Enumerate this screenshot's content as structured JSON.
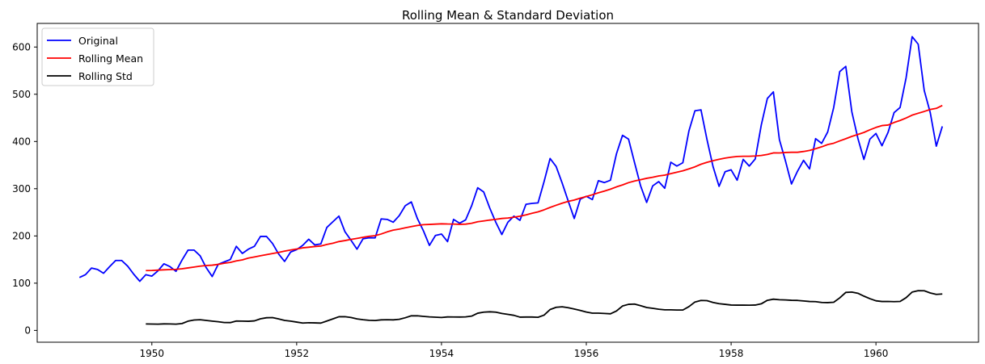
{
  "chart_data": {
    "type": "line",
    "title": "Rolling Mean & Standard Deviation",
    "xlabel": "",
    "ylabel": "",
    "x_start": "1949-01",
    "x_ticks": [
      1950,
      1952,
      1954,
      1956,
      1958,
      1960
    ],
    "y_ticks": [
      0,
      100,
      200,
      300,
      400,
      500,
      600
    ],
    "xlim": [
      "1948-06",
      "1961-06"
    ],
    "ylim": [
      -25,
      650
    ],
    "grid": false,
    "legend_position": "upper-left",
    "series": [
      {
        "name": "Original",
        "color": "#0000ff",
        "values": [
          112,
          118,
          132,
          129,
          121,
          135,
          148,
          148,
          136,
          119,
          104,
          118,
          115,
          126,
          141,
          135,
          125,
          149,
          170,
          170,
          158,
          133,
          114,
          140,
          145,
          150,
          178,
          163,
          172,
          178,
          199,
          199,
          184,
          162,
          146,
          166,
          171,
          180,
          193,
          181,
          183,
          218,
          230,
          242,
          209,
          191,
          172,
          194,
          196,
          196,
          236,
          235,
          229,
          243,
          264,
          272,
          237,
          211,
          180,
          201,
          204,
          188,
          235,
          227,
          234,
          264,
          302,
          293,
          259,
          229,
          203,
          229,
          242,
          233,
          267,
          269,
          270,
          315,
          364,
          347,
          312,
          274,
          237,
          278,
          284,
          277,
          317,
          313,
          318,
          374,
          413,
          405,
          355,
          306,
          271,
          306,
          315,
          301,
          356,
          348,
          355,
          422,
          465,
          467,
          404,
          347,
          305,
          336,
          340,
          318,
          362,
          348,
          363,
          435,
          491,
          505,
          404,
          359,
          310,
          337,
          360,
          342,
          406,
          396,
          420,
          472,
          548,
          559,
          463,
          407,
          362,
          405,
          417,
          391,
          419,
          461,
          472,
          535,
          622,
          606,
          508,
          461,
          390,
          432
        ]
      },
      {
        "name": "Rolling Mean",
        "color": "#ff0000",
        "values": [
          null,
          null,
          null,
          null,
          null,
          null,
          null,
          null,
          null,
          null,
          null,
          126.7,
          126.9,
          127.6,
          128.3,
          128.8,
          129.2,
          130.5,
          132.3,
          134.2,
          136.1,
          137.3,
          138.1,
          139.8,
          142.2,
          144.0,
          147.1,
          149.3,
          153.2,
          155.5,
          158.0,
          160.4,
          162.7,
          165.1,
          167.8,
          170.2,
          172.3,
          174.8,
          176.1,
          177.6,
          178.6,
          181.9,
          184.5,
          188.1,
          190.2,
          192.6,
          194.8,
          197.1,
          199.2,
          200.5,
          204.1,
          208.6,
          212.4,
          214.5,
          217.3,
          219.8,
          222.1,
          223.8,
          224.4,
          225.0,
          225.7,
          225.3,
          225.2,
          224.6,
          225.0,
          226.8,
          230.0,
          231.8,
          233.6,
          235.1,
          237.0,
          238.0,
          239.7,
          241.8,
          244.5,
          248.0,
          251.0,
          255.3,
          260.4,
          265.0,
          269.4,
          273.2,
          276.0,
          280.1,
          283.5,
          287.2,
          291.4,
          295.0,
          299.0,
          303.9,
          308.0,
          312.8,
          316.4,
          319.2,
          322.0,
          324.3,
          327.0,
          328.8,
          332.0,
          334.9,
          338.0,
          342.0,
          346.3,
          351.8,
          355.9,
          359.3,
          362.2,
          364.8,
          366.8,
          368.2,
          368.7,
          368.7,
          369.3,
          370.4,
          372.6,
          375.8,
          375.7,
          376.7,
          377.1,
          377.1,
          378.8,
          381.0,
          384.7,
          388.7,
          393.5,
          396.3,
          401.2,
          405.8,
          410.8,
          414.8,
          419.1,
          424.8,
          429.7,
          433.7,
          434.8,
          440.2,
          444.5,
          449.7,
          455.8,
          459.8,
          463.6,
          467.8,
          470.1,
          476.2
        ]
      },
      {
        "name": "Rolling Std",
        "color": "#000000",
        "values": [
          null,
          null,
          null,
          null,
          null,
          null,
          null,
          null,
          null,
          null,
          null,
          13.7,
          13.4,
          13.2,
          13.8,
          13.6,
          13.3,
          14.5,
          19.6,
          22.0,
          22.6,
          21.2,
          19.7,
          18.4,
          16.6,
          16.5,
          19.8,
          19.7,
          19.3,
          20.2,
          24.6,
          26.8,
          27.1,
          24.3,
          21.2,
          19.6,
          17.6,
          15.6,
          16.2,
          15.9,
          15.5,
          19.9,
          24.3,
          28.9,
          29.0,
          27.3,
          24.4,
          22.6,
          21.3,
          20.9,
          22.3,
          22.6,
          22.3,
          23.5,
          26.8,
          30.9,
          31.0,
          29.7,
          28.6,
          28.0,
          27.3,
          28.5,
          28.4,
          28.3,
          28.6,
          30.3,
          36.4,
          38.6,
          39.4,
          38.6,
          35.8,
          33.9,
          31.9,
          28.1,
          28.3,
          28.3,
          27.8,
          32.4,
          44.2,
          48.9,
          50.0,
          48.0,
          45.2,
          42.3,
          38.9,
          36.5,
          36.5,
          35.9,
          35.1,
          41.2,
          51.6,
          55.2,
          55.7,
          52.4,
          48.5,
          46.7,
          44.9,
          43.5,
          43.6,
          43.1,
          43.1,
          50.3,
          60.1,
          63.4,
          63.0,
          59.1,
          56.6,
          55.2,
          53.7,
          53.5,
          53.5,
          53.4,
          53.7,
          56.3,
          63.7,
          66.1,
          64.9,
          64.5,
          63.8,
          63.5,
          62.3,
          61.2,
          60.9,
          59.2,
          58.8,
          59.6,
          68.9,
          80.4,
          81.2,
          78.6,
          72.6,
          67.2,
          62.7,
          61.2,
          61.3,
          60.9,
          61.3,
          69.3,
          81.2,
          84.2,
          83.9,
          79.3,
          76.3,
          77.1
        ]
      }
    ]
  }
}
